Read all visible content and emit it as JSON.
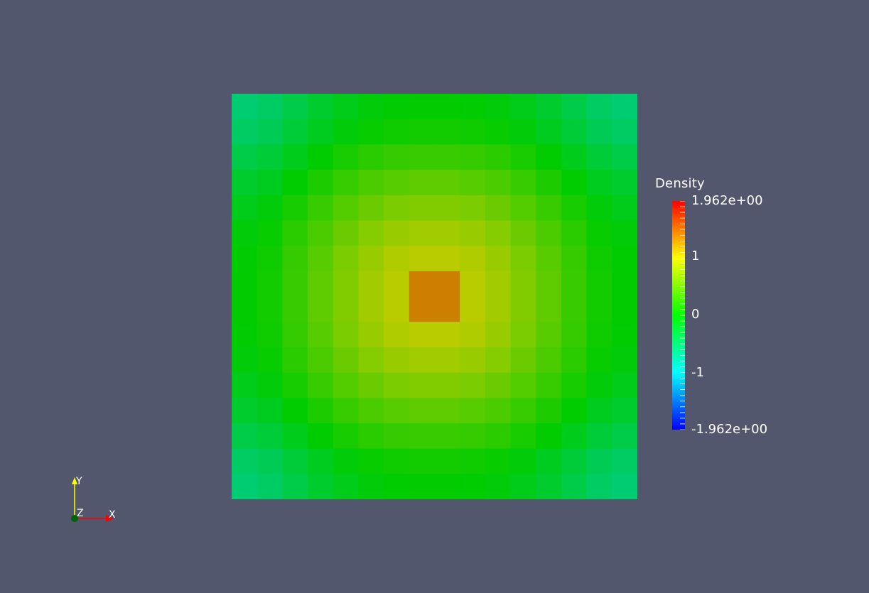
{
  "chart_data": {
    "type": "heatmap",
    "title": "",
    "colorbar": {
      "title": "Density",
      "min": -1.962,
      "max": 1.962,
      "min_label": "-1.962e+00",
      "max_label": "1.962e+00",
      "ticks": [
        {
          "value": 1,
          "label": "1"
        },
        {
          "value": 0,
          "label": "0"
        },
        {
          "value": -1,
          "label": "-1"
        }
      ],
      "colormap": [
        "#0000ff",
        "#00ffff",
        "#00ff00",
        "#ffff00",
        "#ff0000"
      ]
    },
    "grid_rows": 16,
    "grid_cols": 16,
    "note_values": "cell values estimated from color: separable cosine-like bump, max ~1.35 at center, ~-0.55 at corners",
    "values": [
      [
        -0.55,
        -0.48,
        -0.34,
        -0.22,
        -0.12,
        -0.05,
        -0.01,
        0.01,
        0.01,
        -0.01,
        -0.05,
        -0.12,
        -0.22,
        -0.34,
        -0.48,
        -0.55
      ],
      [
        -0.48,
        -0.41,
        -0.27,
        -0.15,
        -0.05,
        0.03,
        0.07,
        0.09,
        0.09,
        0.07,
        0.03,
        -0.05,
        -0.15,
        -0.27,
        -0.41,
        -0.48
      ],
      [
        -0.34,
        -0.27,
        -0.13,
        0.0,
        0.11,
        0.2,
        0.25,
        0.27,
        0.27,
        0.25,
        0.2,
        0.11,
        0.0,
        -0.13,
        -0.27,
        -0.34
      ],
      [
        -0.22,
        -0.15,
        0.0,
        0.14,
        0.26,
        0.36,
        0.42,
        0.45,
        0.45,
        0.42,
        0.36,
        0.26,
        0.14,
        0.0,
        -0.15,
        -0.22
      ],
      [
        -0.12,
        -0.05,
        0.11,
        0.26,
        0.4,
        0.51,
        0.59,
        0.62,
        0.62,
        0.59,
        0.51,
        0.4,
        0.26,
        0.11,
        -0.05,
        -0.12
      ],
      [
        -0.05,
        0.03,
        0.2,
        0.36,
        0.51,
        0.64,
        0.73,
        0.77,
        0.77,
        0.73,
        0.64,
        0.51,
        0.36,
        0.2,
        0.03,
        -0.05
      ],
      [
        -0.01,
        0.07,
        0.25,
        0.42,
        0.59,
        0.73,
        0.84,
        0.89,
        0.89,
        0.84,
        0.73,
        0.59,
        0.42,
        0.25,
        0.07,
        -0.01
      ],
      [
        0.01,
        0.09,
        0.27,
        0.45,
        0.62,
        0.77,
        0.89,
        1.35,
        1.35,
        0.89,
        0.77,
        0.62,
        0.45,
        0.27,
        0.09,
        0.01
      ],
      [
        0.01,
        0.09,
        0.27,
        0.45,
        0.62,
        0.77,
        0.89,
        1.35,
        1.35,
        0.89,
        0.77,
        0.62,
        0.45,
        0.27,
        0.09,
        0.01
      ],
      [
        -0.01,
        0.07,
        0.25,
        0.42,
        0.59,
        0.73,
        0.84,
        0.89,
        0.89,
        0.84,
        0.73,
        0.59,
        0.42,
        0.25,
        0.07,
        -0.01
      ],
      [
        -0.05,
        0.03,
        0.2,
        0.36,
        0.51,
        0.64,
        0.73,
        0.77,
        0.77,
        0.73,
        0.64,
        0.51,
        0.36,
        0.2,
        0.03,
        -0.05
      ],
      [
        -0.12,
        -0.05,
        0.11,
        0.26,
        0.4,
        0.51,
        0.59,
        0.62,
        0.62,
        0.59,
        0.51,
        0.4,
        0.26,
        0.11,
        -0.05,
        -0.12
      ],
      [
        -0.22,
        -0.15,
        0.0,
        0.14,
        0.26,
        0.36,
        0.42,
        0.45,
        0.45,
        0.42,
        0.36,
        0.26,
        0.14,
        0.0,
        -0.15,
        -0.22
      ],
      [
        -0.34,
        -0.27,
        -0.13,
        0.0,
        0.11,
        0.2,
        0.25,
        0.27,
        0.27,
        0.25,
        0.2,
        0.11,
        0.0,
        -0.13,
        -0.27,
        -0.34
      ],
      [
        -0.48,
        -0.41,
        -0.27,
        -0.15,
        -0.05,
        0.03,
        0.07,
        0.09,
        0.09,
        0.07,
        0.03,
        -0.05,
        -0.15,
        -0.27,
        -0.41,
        -0.48
      ],
      [
        -0.55,
        -0.48,
        -0.34,
        -0.22,
        -0.12,
        -0.05,
        -0.01,
        0.01,
        0.01,
        -0.01,
        -0.05,
        -0.12,
        -0.22,
        -0.34,
        -0.48,
        -0.55
      ]
    ]
  },
  "axes_widget": {
    "x_label": "X",
    "y_label": "Y",
    "z_label": "Z"
  },
  "colors": {
    "background": "#52576e",
    "axis_x": "#ff0000",
    "axis_y": "#ffff00",
    "axis_z": "#006400"
  }
}
